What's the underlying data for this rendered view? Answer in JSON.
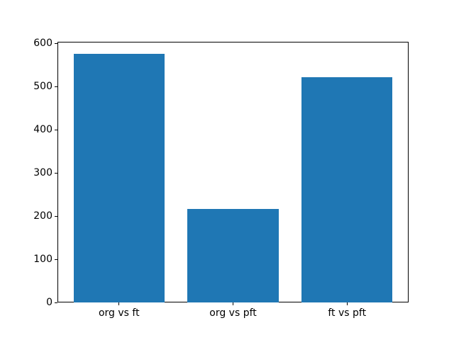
{
  "figure": {
    "background_color": "#ffffff",
    "spine_color": "#000000",
    "text_color": "#000000"
  },
  "chart_data": {
    "type": "bar",
    "title": "",
    "xlabel": "",
    "ylabel": "",
    "categories": [
      "org vs ft",
      "org vs pft",
      "ft vs pft"
    ],
    "values": [
      576,
      216,
      522
    ],
    "bar_color": "#1f77b4",
    "bar_width": 0.8,
    "yticks": [
      0,
      100,
      200,
      300,
      400,
      500,
      600
    ],
    "ylim": [
      0,
      604
    ],
    "xlim": [
      -0.54,
      2.54
    ],
    "grid": false,
    "legend": null
  }
}
